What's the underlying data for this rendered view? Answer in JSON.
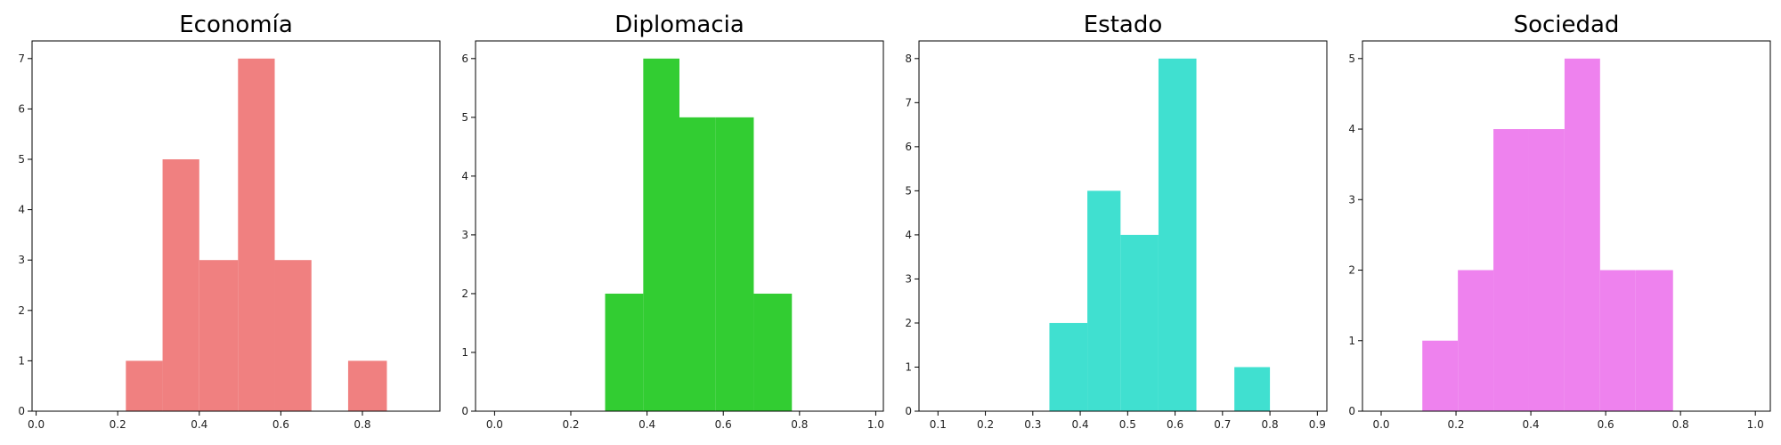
{
  "chart_data": [
    {
      "type": "bar",
      "title": "Economía",
      "color": "#f08080",
      "bins": [
        {
          "x0": 0.22,
          "x1": 0.31,
          "value": 1
        },
        {
          "x0": 0.31,
          "x1": 0.4,
          "value": 5
        },
        {
          "x0": 0.4,
          "x1": 0.495,
          "value": 3
        },
        {
          "x0": 0.495,
          "x1": 0.585,
          "value": 7
        },
        {
          "x0": 0.585,
          "x1": 0.675,
          "value": 3
        },
        {
          "x0": 0.765,
          "x1": 0.86,
          "value": 1
        }
      ],
      "xlim": [
        -0.01,
        0.99
      ],
      "ylim": [
        0,
        7.35
      ],
      "xticks": [
        0.0,
        0.2,
        0.4,
        0.6,
        0.8
      ],
      "xtick_labels": [
        "0.0",
        "0.2",
        "0.4",
        "0.6",
        "0.8"
      ],
      "yticks": [
        0,
        1,
        2,
        3,
        4,
        5,
        6,
        7
      ],
      "ytick_labels": [
        "0",
        "1",
        "2",
        "3",
        "4",
        "5",
        "6",
        "7"
      ]
    },
    {
      "type": "bar",
      "title": "Diplomacia",
      "color": "#32cd32",
      "bins": [
        {
          "x0": 0.29,
          "x1": 0.39,
          "value": 2
        },
        {
          "x0": 0.39,
          "x1": 0.485,
          "value": 6
        },
        {
          "x0": 0.485,
          "x1": 0.58,
          "value": 5
        },
        {
          "x0": 0.58,
          "x1": 0.68,
          "value": 5
        },
        {
          "x0": 0.68,
          "x1": 0.78,
          "value": 2
        }
      ],
      "xlim": [
        -0.05,
        1.02
      ],
      "ylim": [
        0,
        6.3
      ],
      "xticks": [
        0.0,
        0.2,
        0.4,
        0.6,
        0.8,
        1.0
      ],
      "xtick_labels": [
        "0.0",
        "0.2",
        "0.4",
        "0.6",
        "0.8",
        "1.0"
      ],
      "yticks": [
        0,
        1,
        2,
        3,
        4,
        5,
        6
      ],
      "ytick_labels": [
        "0",
        "1",
        "2",
        "3",
        "4",
        "5",
        "6"
      ]
    },
    {
      "type": "bar",
      "title": "Estado",
      "color": "#40e0d0",
      "bins": [
        {
          "x0": 0.335,
          "x1": 0.415,
          "value": 2
        },
        {
          "x0": 0.415,
          "x1": 0.485,
          "value": 5
        },
        {
          "x0": 0.485,
          "x1": 0.565,
          "value": 4
        },
        {
          "x0": 0.565,
          "x1": 0.645,
          "value": 8
        },
        {
          "x0": 0.725,
          "x1": 0.8,
          "value": 1
        }
      ],
      "xlim": [
        0.06,
        0.92
      ],
      "ylim": [
        0,
        8.4
      ],
      "xticks": [
        0.1,
        0.2,
        0.3,
        0.4,
        0.5,
        0.6,
        0.7,
        0.8,
        0.9
      ],
      "xtick_labels": [
        "0.1",
        "0.2",
        "0.3",
        "0.4",
        "0.5",
        "0.6",
        "0.7",
        "0.8",
        "0.9"
      ],
      "yticks": [
        0,
        1,
        2,
        3,
        4,
        5,
        6,
        7,
        8
      ],
      "ytick_labels": [
        "0",
        "1",
        "2",
        "3",
        "4",
        "5",
        "6",
        "7",
        "8"
      ]
    },
    {
      "type": "bar",
      "title": "Sociedad",
      "color": "#ee82ee",
      "bins": [
        {
          "x0": 0.11,
          "x1": 0.205,
          "value": 1
        },
        {
          "x0": 0.205,
          "x1": 0.3,
          "value": 2
        },
        {
          "x0": 0.3,
          "x1": 0.395,
          "value": 4
        },
        {
          "x0": 0.395,
          "x1": 0.49,
          "value": 4
        },
        {
          "x0": 0.49,
          "x1": 0.585,
          "value": 5
        },
        {
          "x0": 0.585,
          "x1": 0.68,
          "value": 2
        },
        {
          "x0": 0.68,
          "x1": 0.78,
          "value": 2
        }
      ],
      "xlim": [
        -0.05,
        1.04
      ],
      "ylim": [
        0,
        5.25
      ],
      "xticks": [
        0.0,
        0.2,
        0.4,
        0.6,
        0.8,
        1.0
      ],
      "xtick_labels": [
        "0.0",
        "0.2",
        "0.4",
        "0.6",
        "0.8",
        "1.0"
      ],
      "yticks": [
        0,
        1,
        2,
        3,
        4,
        5
      ],
      "ytick_labels": [
        "0",
        "1",
        "2",
        "3",
        "4",
        "5"
      ]
    }
  ]
}
